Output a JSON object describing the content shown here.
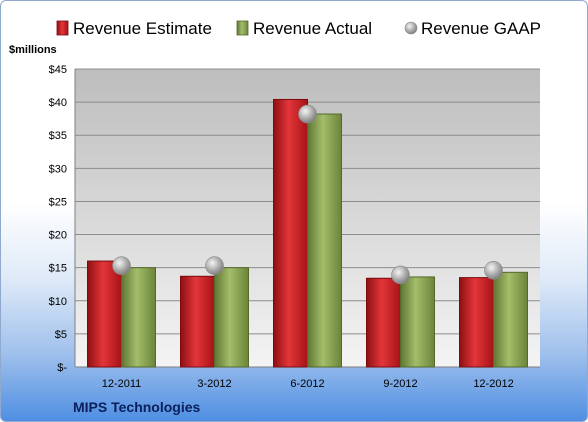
{
  "company_label": "MIPS Technologies",
  "chart_data": {
    "type": "bar",
    "title": "",
    "unit_label": "$millions",
    "categories": [
      "12-2011",
      "3-2012",
      "6-2012",
      "9-2012",
      "12-2012"
    ],
    "series": [
      {
        "name": "Revenue Estimate",
        "kind": "bar",
        "color": "#c8191d",
        "values": [
          16.0,
          13.7,
          40.4,
          13.4,
          13.5
        ]
      },
      {
        "name": "Revenue Actual",
        "kind": "bar",
        "color": "#8aa155",
        "values": [
          15.0,
          15.0,
          38.2,
          13.6,
          14.3
        ]
      },
      {
        "name": "Revenue GAAP",
        "kind": "marker",
        "color": "#a6a6a6",
        "values": [
          15.3,
          15.3,
          38.2,
          13.9,
          14.6
        ]
      }
    ],
    "ylim": [
      0,
      45
    ],
    "yticks": [
      0,
      5,
      10,
      15,
      20,
      25,
      30,
      35,
      40,
      45
    ],
    "ytick_labels": [
      "$-",
      "$5",
      "$10",
      "$15",
      "$20",
      "$25",
      "$30",
      "$35",
      "$40",
      "$45"
    ],
    "grid": true,
    "legend_position": "top"
  }
}
